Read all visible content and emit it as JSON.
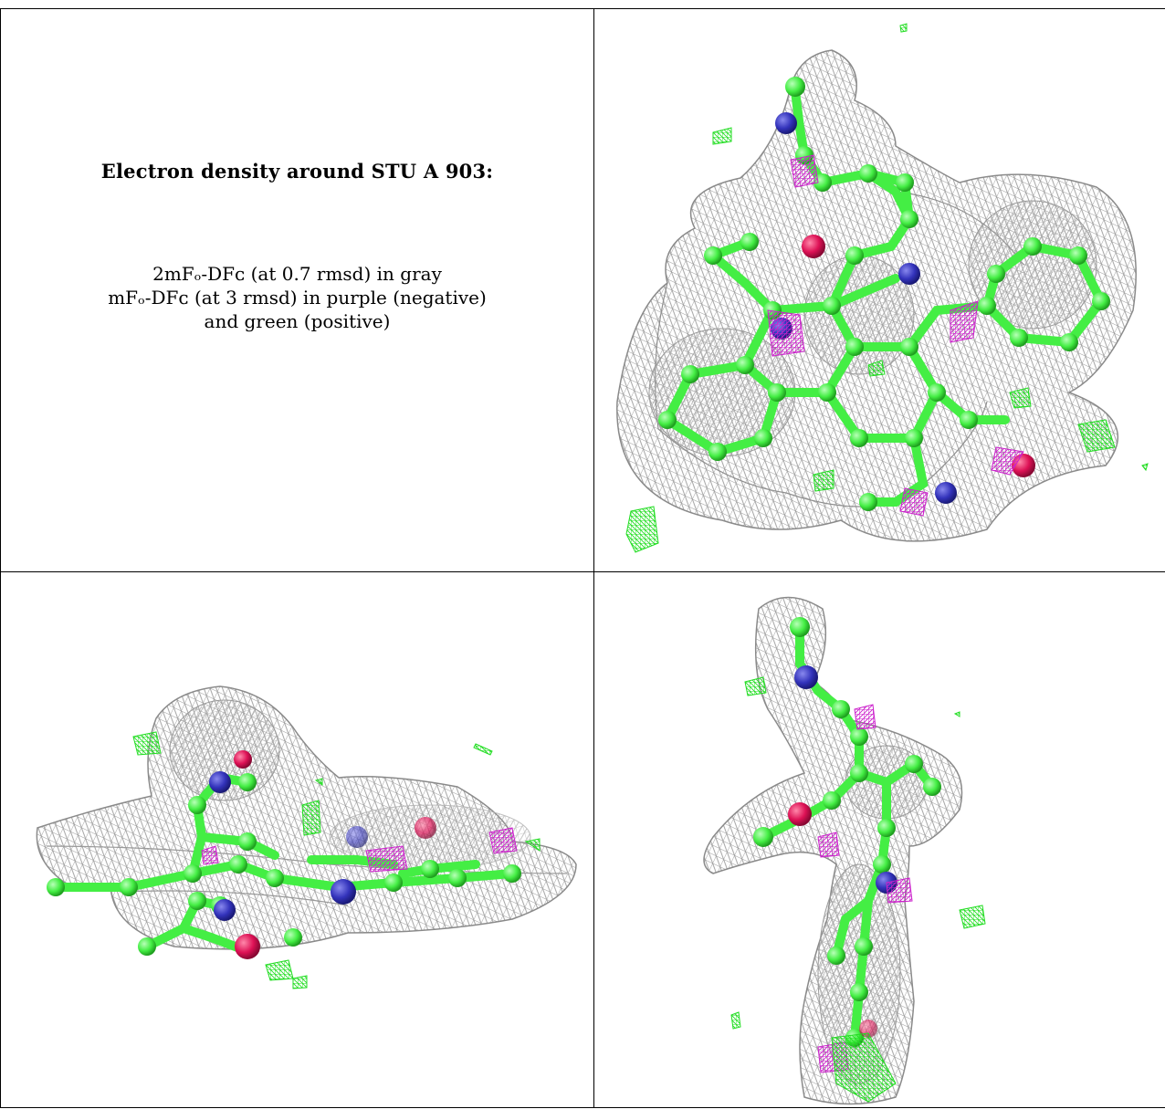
{
  "caption": {
    "title": "Electron density around STU A 903:",
    "line1": "2mFₒ-DFᴄ (at 0.7 rmsd) in gray",
    "line2": "mFₒ-DFᴄ (at 3 rmsd) in purple (negative)",
    "line3": "and green (positive)"
  },
  "colors": {
    "density_mesh": "#9a9a9a",
    "positive_difference": "#22dd22",
    "negative_difference": "#cc22cc",
    "carbon": "#44ee44",
    "nitrogen": "#3333bb",
    "oxygen": "#dd1155",
    "grid_line": "#000000"
  },
  "panels": [
    {
      "name": "view-top-right",
      "description_icon": "molecule-density-view"
    },
    {
      "name": "view-bottom-left",
      "description_icon": "molecule-density-view"
    },
    {
      "name": "view-bottom-right",
      "description_icon": "molecule-density-view"
    }
  ]
}
